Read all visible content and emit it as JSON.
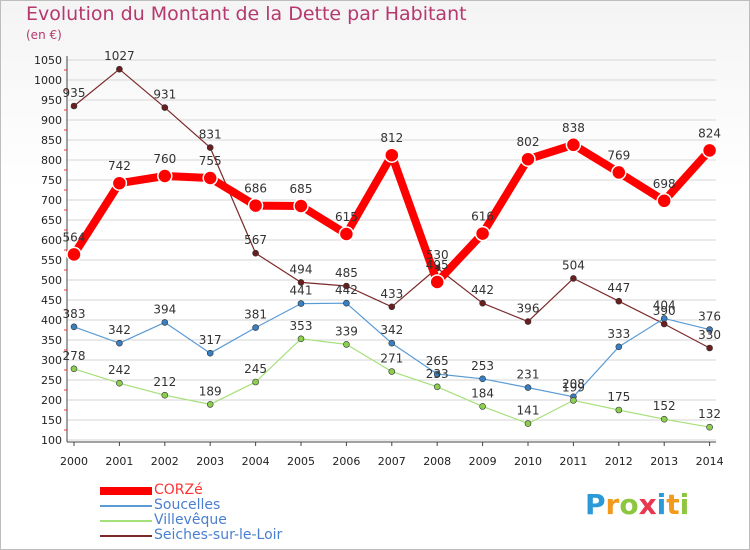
{
  "title": "Evolution du Montant de la Dette par Habitant",
  "subtitle": "(en €)",
  "logo": {
    "letters": [
      "P",
      "r",
      "o",
      "x",
      "i",
      "t",
      "i"
    ],
    "colors": [
      "#2a9ad8",
      "#f29a1c",
      "#8dc63f",
      "#e8384f",
      "#2a9ad8",
      "#f29a1c",
      "#8dc63f"
    ]
  },
  "chart_data": {
    "type": "line",
    "title": "Evolution du Montant de la Dette par Habitant",
    "xlabel": "",
    "ylabel": "(en €)",
    "ylim": [
      100,
      1050
    ],
    "y_ticks": [
      100,
      150,
      200,
      250,
      300,
      350,
      400,
      450,
      500,
      550,
      600,
      650,
      700,
      750,
      800,
      850,
      900,
      950,
      1000,
      1050
    ],
    "categories": [
      "2000",
      "2001",
      "2002",
      "2003",
      "2004",
      "2005",
      "2006",
      "2007",
      "2008",
      "2009",
      "2010",
      "2011",
      "2012",
      "2013",
      "2014"
    ],
    "grid": "horizontal",
    "legend_position": "bottom-left",
    "series": [
      {
        "name": "Seiches-sur-le-Loir",
        "color": "#7b2a2a",
        "point_color": "#6a1e1e",
        "width": 1.2,
        "marker": 3,
        "values": [
          935,
          1027,
          931,
          831,
          567,
          494,
          485,
          433,
          530,
          442,
          396,
          504,
          447,
          390,
          330
        ],
        "labels": [
          "935",
          "1027",
          "931",
          "831",
          "567",
          "494",
          "485",
          "433",
          "530",
          "442",
          "396",
          "504",
          "447",
          "390",
          "330"
        ]
      },
      {
        "name": "Soucelles",
        "color": "#5b9bd5",
        "point_color": "#3a7fc1",
        "width": 1.2,
        "marker": 3,
        "values": [
          383,
          342,
          394,
          317,
          381,
          441,
          442,
          342,
          265,
          253,
          231,
          208,
          333,
          404,
          376
        ],
        "labels": [
          "383",
          "342",
          "394",
          "317",
          "381",
          "441",
          "442",
          "342",
          "265",
          "253",
          "231",
          "208",
          "333",
          "404",
          "376"
        ]
      },
      {
        "name": "Villevêque",
        "color": "#a6e07a",
        "point_color": "#8ccf4f",
        "width": 1.2,
        "marker": 3,
        "values": [
          278,
          242,
          212,
          189,
          245,
          353,
          339,
          271,
          233,
          184,
          141,
          199,
          175,
          152,
          132
        ],
        "labels": [
          "278",
          "242",
          "212",
          "189",
          "245",
          "353",
          "339",
          "271",
          "233",
          "184",
          "141",
          "199",
          "175",
          "152",
          "132"
        ]
      },
      {
        "name": "CORZé",
        "color": "#ff0000",
        "point_color": "#ff0000",
        "width": 8,
        "marker": 7,
        "values": [
          564,
          742,
          760,
          755,
          686,
          685,
          615,
          812,
          495,
          616,
          802,
          838,
          769,
          698,
          824
        ],
        "labels": [
          "564",
          "742",
          "760",
          "755",
          "686",
          "685",
          "615",
          "812",
          "495",
          "616",
          "802",
          "838",
          "769",
          "698",
          "824"
        ]
      }
    ],
    "legend": [
      {
        "name": "CORZé",
        "color": "#ff0000",
        "text_color": "#ff3333",
        "thickness": 8
      },
      {
        "name": "Soucelles",
        "color": "#5b9bd5",
        "text_color": "#4a7fd0",
        "thickness": 2
      },
      {
        "name": "Villevêque",
        "color": "#a6e07a",
        "text_color": "#4a7fd0",
        "thickness": 2
      },
      {
        "name": "Seiches-sur-le-Loir",
        "color": "#7b2a2a",
        "text_color": "#4a7fd0",
        "thickness": 2
      }
    ]
  }
}
